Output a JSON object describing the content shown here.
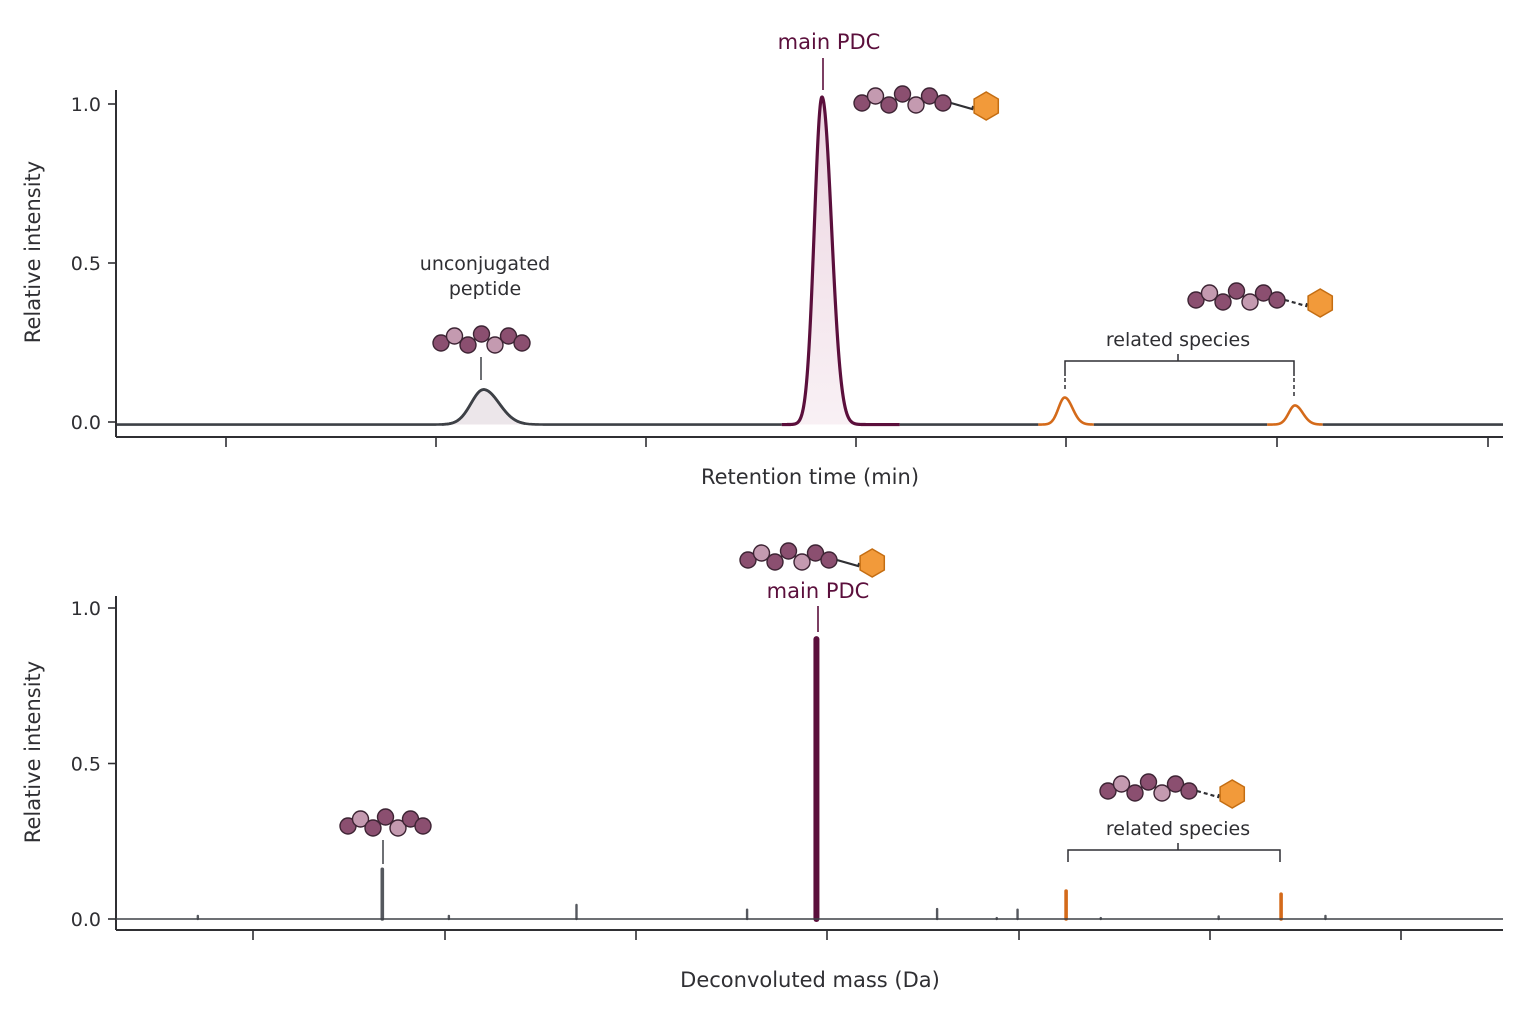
{
  "colors": {
    "main": "#5b0f3c",
    "unconjugated": "#3d4046",
    "related": "#d46a1a",
    "axis": "#2f2f33",
    "bead_dark": "#8b4f70",
    "bead_light": "#c49ab0",
    "payload": "#f29a3a"
  },
  "icons": {
    "conjugate": "peptide-drug-conjugate-icon",
    "peptide": "peptide-chain-icon"
  },
  "chart_data": [
    {
      "type": "line",
      "xlabel": "Retention time (min)",
      "ylabel": "Relative intensity",
      "ylim": [
        0,
        1
      ],
      "yticks": [
        "0.0",
        "0.5",
        "1.0"
      ],
      "grid": false,
      "series": [
        {
          "peaks": [
            {
              "x": 0.265,
              "height": 0.11,
              "width": 0.009
            },
            {
              "x": 0.509,
              "height": 1.03,
              "width": 0.0055
            },
            {
              "x": 0.684,
              "height": 0.085,
              "width": 0.0045
            },
            {
              "x": 0.85,
              "height": 0.06,
              "width": 0.0045
            }
          ]
        }
      ],
      "annotations": {
        "unconjugated": [
          "unconjugated",
          "peptide"
        ],
        "main": "main PDC",
        "related": "related species"
      }
    },
    {
      "type": "bar",
      "xlabel": "Deconvoluted mass (Da)",
      "ylabel": "Relative intensity",
      "ylim": [
        0,
        1
      ],
      "yticks": [
        "0.0",
        "0.5",
        "1.0"
      ],
      "grid": false,
      "series": [
        {
          "sticks": [
            {
              "x": 0.059,
              "value": 0.01
            },
            {
              "x": 0.192,
              "value": 0.16
            },
            {
              "x": 0.24,
              "value": 0.01
            },
            {
              "x": 0.332,
              "value": 0.045
            },
            {
              "x": 0.455,
              "value": 0.03
            },
            {
              "x": 0.505,
              "value": 0.9
            },
            {
              "x": 0.592,
              "value": 0.032
            },
            {
              "x": 0.635,
              "value": 0.003
            },
            {
              "x": 0.65,
              "value": 0.03
            },
            {
              "x": 0.685,
              "value": 0.09
            },
            {
              "x": 0.71,
              "value": 0.003
            },
            {
              "x": 0.795,
              "value": 0.008
            },
            {
              "x": 0.84,
              "value": 0.08
            },
            {
              "x": 0.872,
              "value": 0.01
            }
          ]
        }
      ],
      "annotations": {
        "main": "main PDC",
        "related": "related species"
      }
    }
  ]
}
